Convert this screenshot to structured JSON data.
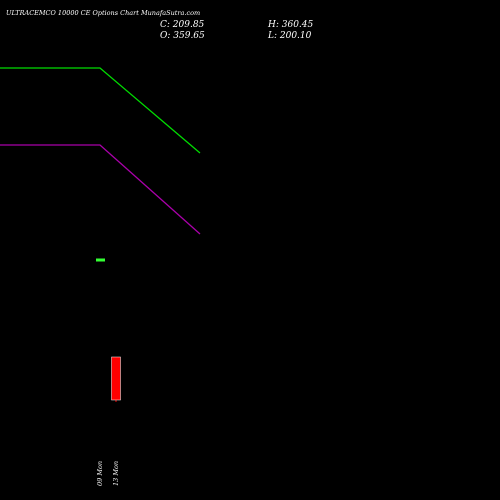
{
  "chart_data": {
    "type": "line",
    "title": "ULTRACEMCO 10000  CE Options  Chart MunafaSutra.com",
    "ohlc_labels": {
      "close": "C: 209.85",
      "high": "H: 360.45",
      "open": "O: 359.65",
      "low": "L: 200.10"
    },
    "categories": [
      "",
      "09 Mon",
      "13 Mon",
      ""
    ],
    "y_range": [
      0,
      500
    ],
    "series": [
      {
        "color": "#00dd00",
        "points": [
          [
            0,
            432
          ],
          [
            1,
            432
          ],
          [
            3,
            347
          ]
        ]
      },
      {
        "color": "#aa00aa",
        "points": [
          [
            0,
            355
          ],
          [
            1,
            355
          ],
          [
            3,
            266
          ]
        ]
      }
    ],
    "marker": {
      "x": 1,
      "y": 240,
      "color": "#33ff33"
    },
    "candle": {
      "x": 2,
      "open": 143,
      "close": 100,
      "high": 143,
      "low": 98,
      "color": "#ff0000"
    },
    "colors": {
      "background": "#000000",
      "text": "#ffffff"
    }
  }
}
